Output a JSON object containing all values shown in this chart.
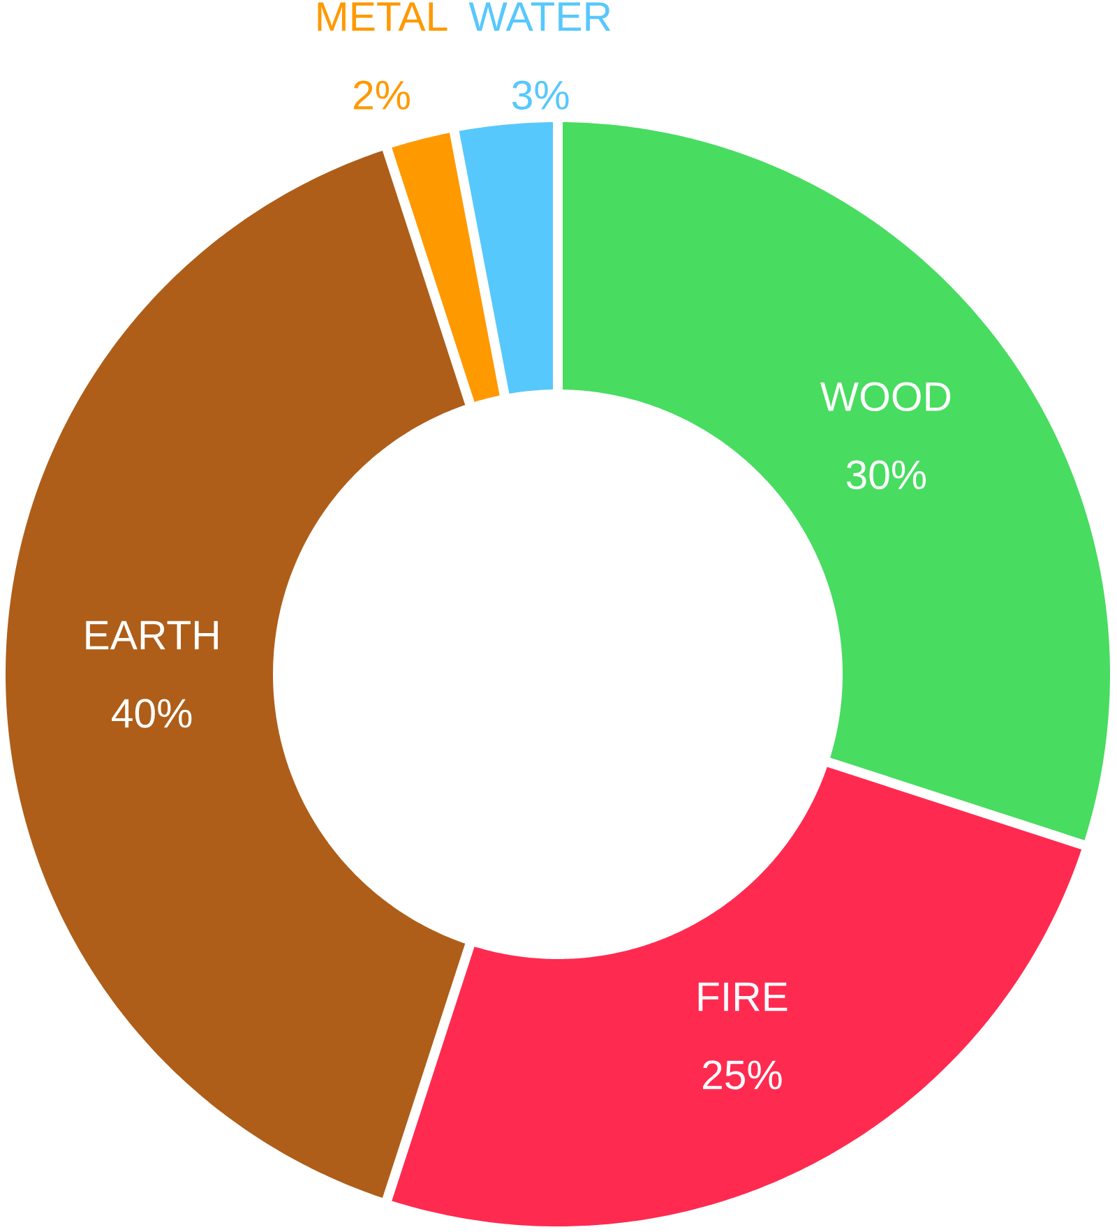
{
  "chart_data": {
    "type": "donut",
    "categories": [
      "WOOD",
      "FIRE",
      "EARTH",
      "METAL",
      "WATER"
    ],
    "values": [
      30,
      25,
      40,
      2,
      3
    ],
    "colors": [
      "#48dc60",
      "#ff2a50",
      "#ae5e19",
      "#ff9900",
      "#57c8fc"
    ],
    "value_labels": [
      "30%",
      "25%",
      "40%",
      "2%",
      "3%"
    ]
  }
}
